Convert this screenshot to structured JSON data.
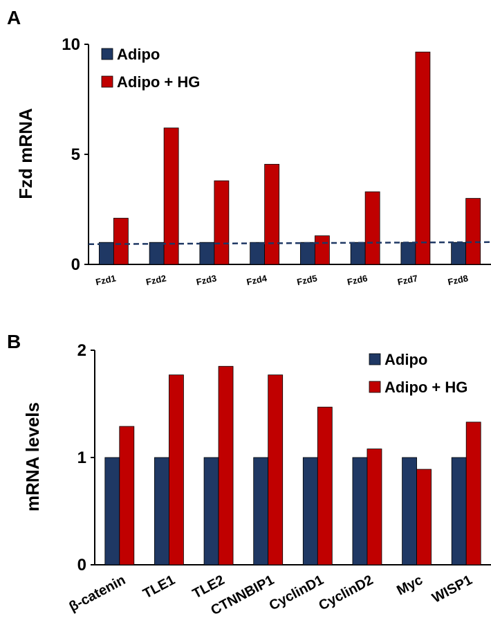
{
  "colors": {
    "adipo": "#1f3864",
    "adipo_hg": "#c00000",
    "axis": "#000000",
    "dashed": "#1f3864"
  },
  "chart_data": [
    {
      "panel": "A",
      "type": "bar",
      "ylabel": "Fzd mRNA",
      "ylim": [
        0,
        10
      ],
      "yticks": [
        "0",
        "5",
        "10"
      ],
      "categories": [
        "Fzd1",
        "Fzd2",
        "Fzd3",
        "Fzd4",
        "Fzd5",
        "Fzd6",
        "Fzd7",
        "Fzd8"
      ],
      "series": [
        {
          "name": "Adipo",
          "values": [
            1,
            1,
            1,
            1,
            1,
            1,
            1,
            1
          ]
        },
        {
          "name": "Adipo + HG",
          "values": [
            2.1,
            6.2,
            3.8,
            4.55,
            1.3,
            3.3,
            9.65,
            3.0
          ]
        }
      ],
      "reference_line": 0.95,
      "legend": "top-left"
    },
    {
      "panel": "B",
      "type": "bar",
      "ylabel": "mRNA levels",
      "ylim": [
        0,
        2
      ],
      "yticks": [
        "0",
        "1",
        "2"
      ],
      "categories": [
        "β-catenin",
        "TLE1",
        "TLE2",
        "CTNNBIP1",
        "CyclinD1",
        "CyclinD2",
        "Myc",
        "WISP1"
      ],
      "series": [
        {
          "name": "Adipo",
          "values": [
            1,
            1,
            1,
            1,
            1,
            1,
            1,
            1
          ]
        },
        {
          "name": "Adipo + HG",
          "values": [
            1.29,
            1.77,
            1.85,
            1.77,
            1.47,
            1.08,
            0.89,
            1.33
          ]
        }
      ],
      "legend": "top-right"
    }
  ]
}
